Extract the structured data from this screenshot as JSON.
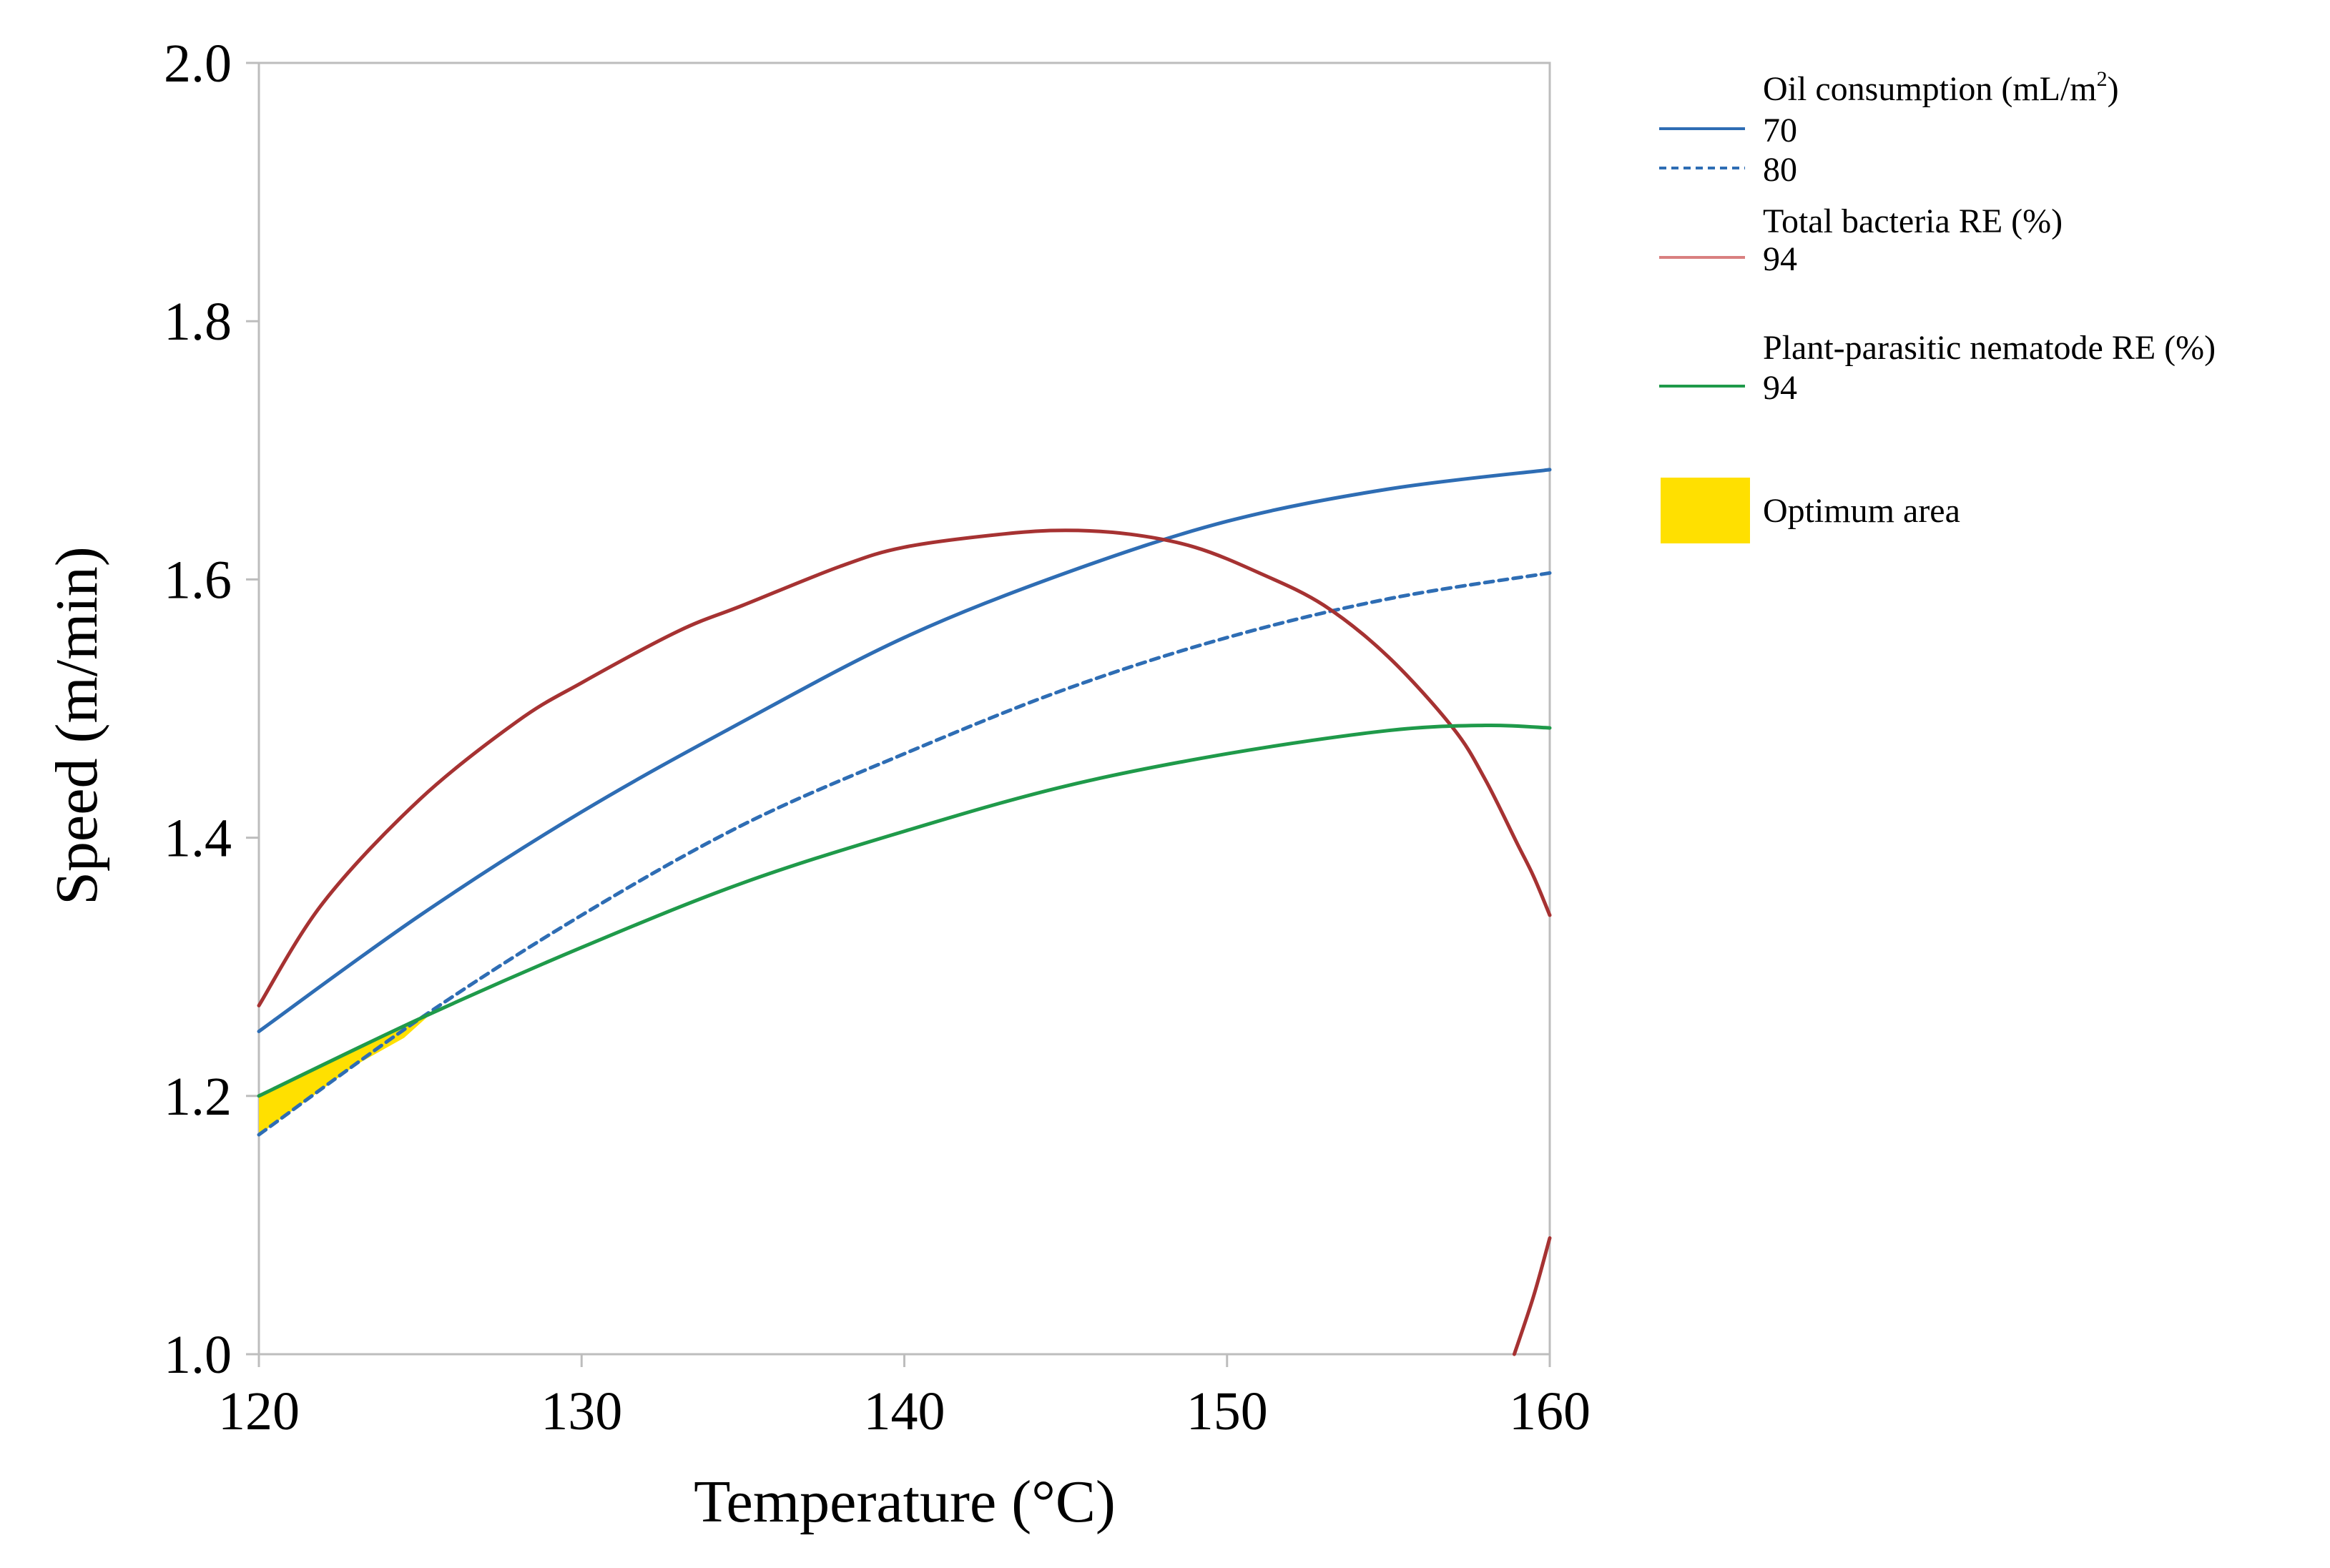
{
  "chart_data": {
    "type": "line",
    "title": "",
    "xlabel": "Temperature (°C)",
    "ylabel": "Speed (m/min)",
    "xlim": [
      120,
      160
    ],
    "ylim": [
      1.0,
      2.0
    ],
    "x_ticks": [
      "120",
      "130",
      "140",
      "150",
      "160"
    ],
    "y_ticks": [
      "1.0",
      "1.2",
      "1.4",
      "1.6",
      "1.8",
      "2.0"
    ],
    "grid": false,
    "legend_position": "right",
    "legend": {
      "oil_title": "Oil consumption (mL/m",
      "oil_title_sup": "2",
      "oil_title_end": ")",
      "oil_70": "70",
      "oil_80": "80",
      "bacteria_title": "Total bacteria RE (%)",
      "bacteria_94": "94",
      "nematode_title": "Plant-parasitic nematode RE (%)",
      "nematode_94": "94",
      "optimum": "Optimum area"
    },
    "colors": {
      "oil": "#2e6db4",
      "bacteria": "#a63232",
      "nematode": "#1f9a4a",
      "optimum": "#ffe000",
      "axis": "#bdbdbd",
      "bacteria_legend": "#d98080"
    },
    "series": [
      {
        "name": "Oil consumption 70 mL/m2",
        "style": "solid",
        "x": [
          120,
          125,
          130,
          135,
          140,
          145,
          150,
          155,
          160
        ],
        "y": [
          1.25,
          1.34,
          1.42,
          1.49,
          1.555,
          1.605,
          1.645,
          1.67,
          1.685
        ]
      },
      {
        "name": "Oil consumption 80 mL/m2",
        "style": "dashed",
        "x": [
          120,
          125,
          130,
          135,
          140,
          145,
          150,
          155,
          160
        ],
        "y": [
          1.17,
          1.26,
          1.34,
          1.41,
          1.465,
          1.515,
          1.555,
          1.585,
          1.605
        ]
      },
      {
        "name": "Total bacteria RE 94%",
        "style": "solid",
        "x": [
          120,
          122,
          125,
          128,
          130,
          133,
          135,
          138,
          140,
          143,
          145,
          147,
          149,
          151,
          153,
          155,
          157,
          158,
          159,
          159.5,
          160
        ],
        "y": [
          1.27,
          1.35,
          1.43,
          1.49,
          1.52,
          1.56,
          1.58,
          1.61,
          1.625,
          1.635,
          1.638,
          1.635,
          1.625,
          1.605,
          1.58,
          1.54,
          1.485,
          1.445,
          1.395,
          1.37,
          1.34
        ]
      },
      {
        "name": "Total bacteria RE 94% (lower branch)",
        "style": "solid",
        "x": [
          158.9,
          159.5,
          160
        ],
        "y": [
          1.0,
          1.045,
          1.09
        ]
      },
      {
        "name": "Plant-parasitic nematode RE 94%",
        "style": "solid",
        "x": [
          120,
          125,
          130,
          135,
          140,
          145,
          150,
          155,
          158,
          160
        ],
        "y": [
          1.2,
          1.26,
          1.315,
          1.365,
          1.405,
          1.44,
          1.465,
          1.483,
          1.487,
          1.485
        ]
      }
    ],
    "optimum_area": {
      "x": [
        120,
        121,
        122,
        123,
        124.5,
        125.3,
        124.5,
        123,
        122,
        121,
        120
      ],
      "y": [
        1.2,
        1.212,
        1.224,
        1.236,
        1.254,
        1.263,
        1.245,
        1.224,
        1.206,
        1.188,
        1.17
      ]
    }
  }
}
